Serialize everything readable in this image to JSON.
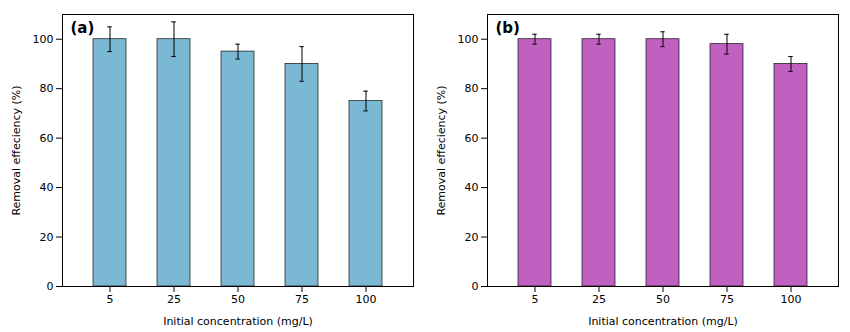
{
  "chart_data": [
    {
      "type": "bar",
      "title": "(a)",
      "categories": [
        "5",
        "25",
        "50",
        "75",
        "100"
      ],
      "values": [
        100,
        100,
        95,
        90,
        75
      ],
      "errors": [
        5,
        7,
        3,
        7,
        4
      ],
      "color": "#7ab8d4",
      "xlabel": "Initial concentration (mg/L)",
      "ylabel": "Removal effeciency (%)",
      "ylim": [
        0,
        110
      ],
      "yticks": [
        0,
        20,
        40,
        60,
        80,
        100
      ],
      "grid": false
    },
    {
      "type": "bar",
      "title": "(b)",
      "categories": [
        "5",
        "25",
        "50",
        "75",
        "100"
      ],
      "values": [
        100,
        100,
        100,
        98,
        90
      ],
      "errors": [
        2,
        2,
        3,
        4,
        3
      ],
      "color": "#c060c0",
      "xlabel": "Initial concentration (mg/L)",
      "ylabel": "Removal effeciency (%)",
      "ylim": [
        0,
        110
      ],
      "yticks": [
        0,
        20,
        40,
        60,
        80,
        100
      ],
      "grid": false
    }
  ]
}
